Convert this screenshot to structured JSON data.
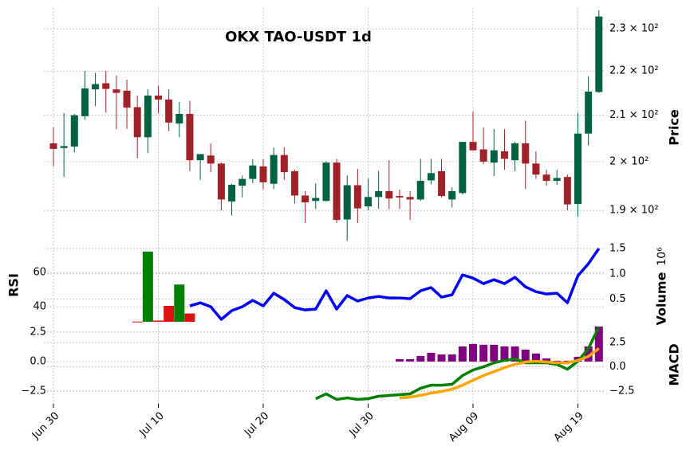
{
  "chart_data": [
    {
      "type": "candlestick",
      "title": "OKX TAO-USDT 1d",
      "ylabel": "Price",
      "log_scale": true,
      "grid": true,
      "up_color": "#006340",
      "down_color": "#a02128",
      "categories": [
        "Jun 30",
        "Jul 01",
        "Jul 02",
        "Jul 03",
        "Jul 04",
        "Jul 05",
        "Jul 06",
        "Jul 07",
        "Jul 08",
        "Jul 09",
        "Jul 10",
        "Jul 11",
        "Jul 12",
        "Jul 13",
        "Jul 14",
        "Jul 15",
        "Jul 16",
        "Jul 17",
        "Jul 18",
        "Jul 19",
        "Jul 20",
        "Jul 21",
        "Jul 22",
        "Jul 23",
        "Jul 24",
        "Jul 25",
        "Jul 26",
        "Jul 27",
        "Jul 28",
        "Jul 29",
        "Jul 30",
        "Jul 31",
        "Aug 01",
        "Aug 02",
        "Aug 03",
        "Aug 04",
        "Aug 05",
        "Aug 06",
        "Aug 07",
        "Aug 08",
        "Aug 09",
        "Aug 10",
        "Aug 11",
        "Aug 12",
        "Aug 13",
        "Aug 14",
        "Aug 15",
        "Aug 16",
        "Aug 17",
        "Aug 18",
        "Aug 19",
        "Aug 20",
        "Aug 21"
      ],
      "xticks": [
        "Jun 30",
        "Jul 10",
        "Jul 20",
        "Jul 30",
        "Aug 09",
        "Aug 19"
      ],
      "open": [
        203.9,
        202.9,
        203.2,
        209.8,
        215.8,
        217.2,
        215.8,
        215.5,
        211.8,
        205.2,
        214.4,
        213.5,
        208.2,
        210.3,
        200.3,
        201.3,
        199.6,
        191.8,
        195,
        196.4,
        199,
        195.4,
        201.4,
        198,
        193,
        191.9,
        191.9,
        199.8,
        188.2,
        195.1,
        190.8,
        192.7,
        193.9,
        192.9,
        192.7,
        192.2,
        196.1,
        198,
        192.2,
        193.5,
        204.2,
        202.6,
        199.8,
        202.2,
        200.3,
        203.9,
        199.6,
        197.3,
        196,
        196.8,
        191.3,
        206,
        215.2
      ],
      "high": [
        207.3,
        210.5,
        210.3,
        220,
        219.6,
        220,
        219,
        218,
        214.4,
        215.8,
        216.6,
        215.8,
        213,
        213.2,
        201.6,
        203.9,
        199.8,
        195.4,
        197.1,
        200.5,
        200.5,
        203,
        203,
        198.3,
        193.9,
        195.5,
        200.1,
        200.6,
        197.1,
        198.5,
        196.4,
        198.1,
        200.3,
        194.2,
        193.9,
        200.6,
        200.6,
        200.6,
        194.7,
        204.2,
        210.8,
        207.3,
        207,
        207,
        204.2,
        208.8,
        202.2,
        198.3,
        198.3,
        197.3,
        210.6,
        218.8,
        234.5
      ],
      "low": [
        199,
        196.8,
        202,
        209,
        212,
        210.6,
        207,
        207,
        200.7,
        201.8,
        210.5,
        206.5,
        205.2,
        198,
        196.2,
        197.8,
        190,
        189,
        192.6,
        195.5,
        194.3,
        194.3,
        196.2,
        191.4,
        187.5,
        190.3,
        191.8,
        187.5,
        184,
        187.5,
        190,
        190.3,
        190.3,
        190.3,
        188.1,
        191.9,
        195.3,
        192.6,
        190.6,
        193.2,
        202.3,
        199.5,
        197,
        198.3,
        198,
        194.3,
        196.4,
        195,
        195.2,
        190,
        188.7,
        203.4,
        215
      ],
      "close": [
        202.7,
        203.3,
        210,
        216,
        217,
        215.9,
        215,
        211.7,
        205.2,
        214.4,
        213.5,
        208.4,
        210.3,
        200.3,
        201.6,
        199.6,
        192.2,
        195.2,
        196.4,
        199.2,
        195.7,
        201.4,
        197.8,
        193,
        191.6,
        192.5,
        199.8,
        188.1,
        195.1,
        190.4,
        192.7,
        193.9,
        192.4,
        192.6,
        192.2,
        196,
        197.6,
        192.9,
        193.9,
        204.2,
        202.4,
        200,
        202.4,
        200.6,
        203.9,
        199.6,
        197.3,
        196,
        196.6,
        191.2,
        206,
        215.3,
        233
      ],
      "ylim": [
        183.3,
        235.1
      ],
      "yticks": [
        {
          "value": 190,
          "label": "1.9 × 10²"
        },
        {
          "value": 200,
          "label": "2 × 10²"
        },
        {
          "value": 210,
          "label": "2.1 × 10²"
        },
        {
          "value": 220,
          "label": "2.2 × 10²"
        },
        {
          "value": 230,
          "label": "2.3 × 10²"
        }
      ]
    },
    {
      "type": "line_volume",
      "ylabel": "RSI",
      "y2label": "Volume",
      "y2_offset_label": "10⁶",
      "grid": true,
      "ylim": [
        31.2,
        74
      ],
      "yticks": [
        40,
        60
      ],
      "y2lim": [
        0.056,
        1.5
      ],
      "y2ticks": [
        0.5,
        {
          "value": 1.0,
          "label": "1.0"
        },
        1.5
      ],
      "series": [
        {
          "type": "line",
          "color": "#0000ff",
          "values": [
            null,
            null,
            null,
            null,
            null,
            null,
            null,
            null,
            null,
            null,
            null,
            null,
            null,
            40.5,
            42.3,
            40,
            32.6,
            37.7,
            40,
            43.7,
            40.5,
            47.9,
            44.2,
            39.5,
            38.1,
            38.6,
            49.3,
            38.6,
            46.5,
            43.3,
            45.1,
            46,
            45.1,
            45.1,
            44.7,
            49.3,
            51.2,
            45.6,
            47,
            58.6,
            56.7,
            53.5,
            55.8,
            53.5,
            57.2,
            51.6,
            48.8,
            47.4,
            47.9,
            42.3,
            58.1,
            65.1,
            74
          ]
        },
        {
          "type": "bar",
          "axis": "y2",
          "up_color": "#008000",
          "down_color": "#dd1111",
          "values": [
            null,
            null,
            null,
            null,
            null,
            null,
            null,
            null,
            0.06,
            1.44,
            0.08,
            0.37,
            0.79,
            0.22,
            null,
            null,
            null,
            null,
            null,
            null,
            null,
            null,
            null,
            null,
            null,
            null,
            null,
            null,
            null,
            null,
            null,
            null,
            null,
            null,
            null,
            null,
            null,
            null,
            null,
            null,
            null,
            null,
            null,
            null,
            null,
            null,
            null,
            null,
            null,
            null,
            null,
            null,
            null
          ]
        }
      ]
    },
    {
      "type": "macd",
      "y2label": "MACD",
      "grid": true,
      "ylim": [
        -3.58,
        3.3
      ],
      "yticks": [
        2.5,
        {
          "value": 0,
          "label": "0.0"
        },
        {
          "value": -2.5,
          "label": "−2.5"
        }
      ],
      "y2lim": [
        -3.81,
        4.55
      ],
      "y2ticks": [
        2.5,
        {
          "value": 0,
          "label": "0.0"
        },
        {
          "value": -2.5,
          "label": "−2.5"
        }
      ],
      "series": [
        {
          "type": "bar",
          "color": "#800080",
          "values": [
            null,
            null,
            null,
            null,
            null,
            null,
            null,
            null,
            null,
            null,
            null,
            null,
            null,
            null,
            null,
            null,
            null,
            null,
            null,
            null,
            null,
            null,
            null,
            null,
            null,
            null,
            null,
            null,
            null,
            null,
            null,
            null,
            null,
            0.2,
            0.2,
            0.47,
            0.74,
            0.6,
            0.6,
            1.28,
            1.49,
            1.42,
            1.42,
            1.28,
            1.28,
            1.01,
            0.68,
            0.27,
            0.07,
            0.07,
            0.4,
            1.28,
            2.97
          ]
        },
        {
          "type": "line",
          "axis": "y2",
          "color": "#008000",
          "values": [
            null,
            null,
            null,
            null,
            null,
            null,
            null,
            null,
            null,
            null,
            null,
            null,
            null,
            null,
            null,
            null,
            null,
            null,
            null,
            null,
            null,
            null,
            null,
            null,
            null,
            -3.28,
            -2.79,
            -3.36,
            -3.2,
            -3.36,
            -3.28,
            -3.03,
            -2.95,
            -2.87,
            -2.79,
            -2.21,
            -1.89,
            -1.89,
            -1.8,
            -0.9,
            -0.33,
            0,
            0.41,
            0.66,
            0.82,
            0.41,
            0.41,
            0.41,
            0.25,
            -0.25,
            0.57,
            1.89,
            4.1
          ]
        },
        {
          "type": "line",
          "axis": "y2",
          "color": "#ffa500",
          "values": [
            null,
            null,
            null,
            null,
            null,
            null,
            null,
            null,
            null,
            null,
            null,
            null,
            null,
            null,
            null,
            null,
            null,
            null,
            null,
            null,
            null,
            null,
            null,
            null,
            null,
            null,
            null,
            null,
            null,
            null,
            null,
            null,
            null,
            -3.2,
            -3.11,
            -2.95,
            -2.7,
            -2.54,
            -2.3,
            -1.89,
            -1.39,
            -0.9,
            -0.49,
            -0.08,
            0.25,
            0.49,
            0.57,
            0.49,
            0.41,
            0.41,
            0.66,
            1.07,
            1.89
          ]
        }
      ]
    }
  ]
}
